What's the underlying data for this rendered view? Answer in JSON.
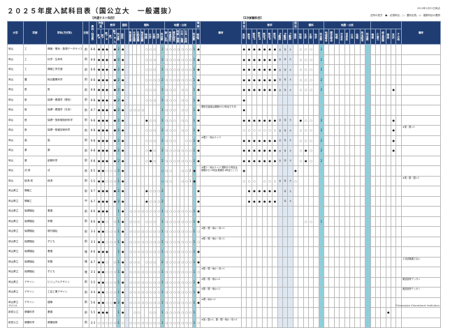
{
  "title": "２０２５年度入試科目表（国公立大　一般選抜）",
  "section_common": "【共通テスト科目】",
  "section_second": "【2次試験科目】",
  "date": "2024年1月31日時点",
  "legend": "記号の見方　●：必須科目、○：選択必須、◇：複数科目の選択",
  "footer_page": "15/114",
  "footer_copyright": "©Kawaijuku Educational Institution.",
  "colors": {
    "header": "#1f3d72",
    "teal": "#8ecfdc",
    "pale": "#dfe8f2"
  },
  "headers": {
    "university": "大学",
    "faculty": "学部",
    "department": "学科(方式等)",
    "schedule": "日程",
    "count": "教科・科目数",
    "remarks_common": "備考",
    "remarks_second": "備考",
    "common_groups": [
      {
        "label": "外国語",
        "span": 2
      },
      {
        "label": "数学",
        "span": 4
      },
      {
        "label": "国語",
        "span": 2
      },
      {
        "label": "理科",
        "span": 9
      },
      {
        "label": "地歴・公民",
        "span": 8
      },
      {
        "label": "情報",
        "span": 1
      }
    ],
    "common_cols": [
      "英R",
      "英L",
      "数I・A",
      "数I",
      "数II・B・C",
      "科目数",
      "国語",
      "",
      "物理基礎",
      "化学基礎",
      "生物基礎",
      "地学基礎",
      "物理",
      "化学",
      "生物",
      "地学",
      "科目数",
      "地総・歴総・公共",
      "地理探究",
      "歴史探究",
      "地総・歴総",
      "公共・倫理",
      "公共・政経",
      "",
      "科目数",
      "情報I"
    ],
    "second_groups": [
      {
        "label": "英語",
        "span": 1
      },
      {
        "label": "数学",
        "span": 9
      },
      {
        "label": "国語",
        "span": 1
      },
      {
        "label": "理科",
        "span": 5
      },
      {
        "label": "地歴・公民",
        "span": 9
      },
      {
        "label": "",
        "span": 6
      }
    ],
    "second_cols": [
      "英語",
      "数学I",
      "数学II",
      "数学III",
      "数学A",
      "数学B",
      "数学C",
      "A範囲",
      "B範囲",
      "C範囲",
      "国語",
      "物理",
      "化学",
      "生物",
      "地学",
      "科目数",
      "地理総合",
      "歴史総合",
      "地理",
      "日本史",
      "世界史",
      "公共",
      "倫理",
      "政治経済",
      "科目数",
      "情報",
      "小論文",
      "総合問題",
      "面接",
      "実技",
      "その他"
    ]
  },
  "rows": [
    {
      "univ": "岡山",
      "fac": "工",
      "dept": "情報・電気・数理データサイエンス系",
      "sched": "前",
      "count": "6-8",
      "common": "●●●.●2●.....○○○.2○○○○○○○1●",
      "remark1": "",
      "second": "●●●●●●●全有大.○○○.2..................",
      "remark2": ""
    },
    {
      "univ": "岡山",
      "fac": "工",
      "dept": "化学・生命系",
      "sched": "前",
      "count": "6-8",
      "common": "●●●.●2●.....○○○.2○○○○○○○1●",
      "remark1": "",
      "second": "●●●●●●●全有大.○○○.2..................",
      "remark2": ""
    },
    {
      "univ": "岡山",
      "fac": "工",
      "dept": "情報工学先進",
      "sched": "前",
      "count": "6-8",
      "common": "●●●.●2●.....○○○.2○○○○○○○1●",
      "remark1": "",
      "second": "●●●●●●●全有大.○○○.2..................",
      "remark2": ""
    },
    {
      "univ": "岡山",
      "fac": "農",
      "dept": "総合農業科学",
      "sched": "前",
      "count": "6-8",
      "common": "●●●.●2●.....○○○○2○○○○○○○1●",
      "remark1": "",
      "second": "●●●●●●●全有大.○○○.2..................",
      "remark2": ""
    },
    {
      "univ": "岡山",
      "fac": "医",
      "dept": "医",
      "sched": "前",
      "count": "6-8",
      "common": "●●●.●2●.....○○○.2○○○.○○.1●",
      "remark1": "",
      "second": "●●●●●●●全有大.○○○.2.............●..",
      "remark2": ""
    },
    {
      "univ": "岡山",
      "fac": "医",
      "dept": "保健－看護学（理系）",
      "sched": "前",
      "count": "6-8",
      "common": "●●●.●2●.....○○○.2○○○.○○.1●",
      "remark1": "",
      "second": "●..............................●..",
      "remark2": ""
    },
    {
      "univ": "岡山",
      "fac": "医",
      "dept": "保健－看護学（文系）",
      "sched": "前",
      "count": "6-7",
      "common": "●●●.●2●.○○○○....1○○○.○○.1●",
      "remark1": "理系志望者は基礎から2科目でも可",
      "second": "●..............................●..",
      "remark2": ""
    },
    {
      "univ": "岡山",
      "fac": "医",
      "dept": "保健－放射線技術科学",
      "sched": "前",
      "count": "6-8",
      "common": "●●●.●2●.....●○○.2○○○.○○.1●",
      "remark1": "",
      "second": "●●●●●●●全有大.●○○.2.............●..",
      "remark2": ""
    },
    {
      "univ": "岡山",
      "fac": "医",
      "dept": "保健－検査技術科学",
      "sched": "前",
      "count": "6-8",
      "common": "●●●.●2●.....○○○.2○○○.○○.1●",
      "remark1": "",
      "second": "○○○○○○○全有大.○○○.2.............●..",
      "remark2": "★英・数＝1"
    },
    {
      "univ": "岡山",
      "fac": "歯",
      "dept": "歯",
      "sched": "前",
      "count": "6-8",
      "common": "●●●.●2●.....○○○.2○○○..○○2●",
      "remark1": "★理２・地公２＝３",
      "second": "●●●●●●●全有大.○○○.2.............●..",
      "remark2": ""
    },
    {
      "univ": "岡山",
      "fac": "薬",
      "dept": "薬",
      "sched": "前",
      "count": "6-8",
      "common": "●●●.●2●.....○●○.2○○○○○○○1●",
      "remark1": "",
      "second": "●●●●●●●全有大.○●○.2.............●..",
      "remark2": ""
    },
    {
      "univ": "岡山",
      "fac": "薬",
      "dept": "創薬科学",
      "sched": "前",
      "count": "6-8",
      "common": "●●●.●2●.....○●○.2○○○○○○○1●",
      "remark1": "",
      "second": "●●●●●●●全有大.○●○.2................",
      "remark2": ""
    },
    {
      "univ": "岡山",
      "fac": "法-前",
      "dept": "法",
      "sched": "前",
      "count": "6-5",
      "common": "●●○○○2●.........○○○..○○2●",
      "remark1": "★理２・地公２＝２ 理科の２科目は、基礎から２科目(基礎を1科目として)",
      "second": "●.........●.......................",
      "remark2": ""
    },
    {
      "univ": "岡山",
      "fac": "経済-前",
      "dept": "経済",
      "sched": "前",
      "count": "5-5",
      "common": "●●○○○1●.........○○○..○○1●",
      "remark1": "",
      "second": "○○○.○○○全有大○.......................",
      "remark2": "★英・数・国＝1"
    },
    {
      "univ": "岡山県立",
      "fac": "情報工",
      "dept": "",
      "sched": "前",
      "count": "6-7",
      "common": "●●●.●2●.....●○○○2........●",
      "remark1": "",
      "second": ".●●●●●●.有大.....................",
      "remark2": ""
    },
    {
      "univ": "岡山県立",
      "fac": "情報工",
      "dept": "",
      "sched": "中",
      "count": "6-7",
      "common": "●●●.●2●.....●○○○2........●",
      "remark1": "",
      "second": ".●●●●●●.有大.....................",
      "remark2": ""
    },
    {
      "univ": "岡山県立",
      "fac": "保健福祉",
      "dept": "看護",
      "sched": "前",
      "count": "6-6",
      "common": "●●●..1●.○○○○○○○○1○○○○○○○1●",
      "remark1": "",
      "second": "...............................●..",
      "remark2": ""
    },
    {
      "univ": "岡山県立",
      "fac": "保健福祉",
      "dept": "栄養",
      "sched": "前",
      "count": "6-6",
      "common": "●●○.○1●.○○○.○○○.1○○○○○○○1●",
      "remark1": "",
      "second": "............○○.1...............",
      "remark2": ""
    },
    {
      "univ": "岡山県立",
      "fac": "保健福祉",
      "dept": "現代福祉",
      "sched": "前",
      "count": "3-3",
      "common": "●●○○○1●.○○○○○○○○1○○○○○○○1○",
      "remark1": "★数・理・地公・情＝1",
      "second": "...............................●..",
      "remark2": ""
    },
    {
      "univ": "岡山県立",
      "fac": "保健福祉",
      "dept": "子ども",
      "sched": "前",
      "count": "3-3",
      "common": "●●○○○1●.○○○○○○○○1○○○○○○○1○",
      "remark1": "★数・理・地公・情＝1",
      "second": "...............................●..",
      "remark2": ""
    },
    {
      "univ": "岡山県立",
      "fac": "保健福祉",
      "dept": "看護",
      "sched": "後",
      "count": "6-6",
      "common": "●●●..1●.○○○○○○○○1○○○○○○○1●",
      "remark1": "",
      "second": "...............................●..",
      "remark2": ""
    },
    {
      "univ": "岡山県立",
      "fac": "保健福祉",
      "dept": "栄養",
      "sched": "後",
      "count": "6-7",
      "common": "●●○.○1●.○○○.○○○.2○○○○○○○1●",
      "remark1": "",
      "second": "...............................",
      "remark2": "２次試験課さない"
    },
    {
      "univ": "岡山県立",
      "fac": "保健福祉",
      "dept": "子ども",
      "sched": "後",
      "count": "3-3",
      "common": "●●○○○1●.○○○○○○○○1○○○○○○○1○",
      "remark1": "★数・理・地公・情＝1",
      "second": "...............................●..",
      "remark2": ""
    },
    {
      "univ": "岡山県立",
      "fac": "デザイン",
      "dept": "ビジュアルデザイン",
      "sched": "前",
      "count": "5-5",
      "common": "●●○○○1●.○○○○○○○○1○○○○○○○1●",
      "remark1": "★数・理・地公＝2",
      "second": "................................●.",
      "remark2": "実技選考デッサン"
    },
    {
      "univ": "岡山県立",
      "fac": "デザイン",
      "dept": "工芸工業デザイン",
      "sched": "前",
      "count": "4-4",
      "common": "●●○○○1●.○○○○○○○○1○○○○○○○1●",
      "remark1": "★数・理・地公＝1",
      "second": "................................●.",
      "remark2": "実技選考デッサン"
    },
    {
      "univ": "岡山県立",
      "fac": "デザイン",
      "dept": "建築",
      "sched": "前",
      "count": "5-6",
      "common": "●●○○●2●.○○○○○○○○1○○○○○○○1●",
      "remark1": "★理・地公＝1",
      "second": "................................●.",
      "remark2": ""
    },
    {
      "univ": "新見公立",
      "fac": "健康科学",
      "dept": "看護",
      "sched": "前",
      "count": "5-5",
      "common": "●●●..1●..○○..○○.1○○○○○○○1.",
      "remark1": "",
      "second": "............................●..●..",
      "remark2": ""
    },
    {
      "univ": "新見公立",
      "fac": "健康科学",
      "dept": "健康保育",
      "sched": "前",
      "count": "3-3",
      "common": "○○○○○1○.○○○○○○○○1○○○○○○○1○",
      "remark1": "★英・国＝1、数・理・地公・情＝2",
      "second": "...............................●..",
      "remark2": ""
    }
  ]
}
